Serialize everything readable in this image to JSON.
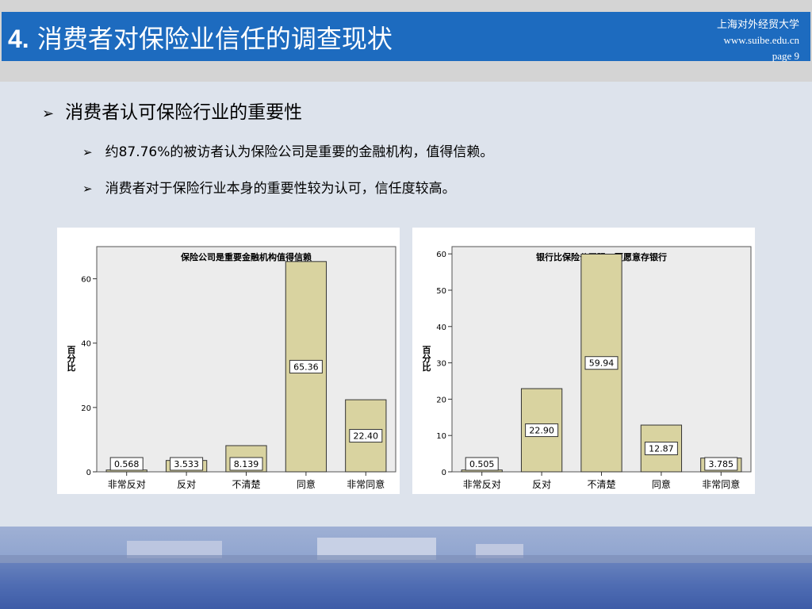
{
  "header": {
    "title_number": "4.",
    "title_text": "消费者对保险业信任的调查现状",
    "university": "上海对外经贸大学",
    "website": "www.suibe.edu.cn",
    "page": "page 9"
  },
  "content": {
    "main_point": "消费者认可保险行业的重要性",
    "sub_points": [
      "约87.76%的被访者认为保险公司是重要的金融机构，值得信赖。",
      "消费者对于保险行业本身的重要性较为认可，信任度较高。"
    ]
  },
  "colors": {
    "title_bar": "#1d6bbf",
    "bar_fill": "#d9d3a0",
    "plot_bg": "#ececec"
  },
  "chart_data": [
    {
      "type": "bar",
      "title": "保险公司是重要金融机构值得信赖",
      "ylabel": "百分比",
      "categories": [
        "非常反对",
        "反对",
        "不清楚",
        "同意",
        "非常同意"
      ],
      "values": [
        0.568,
        3.533,
        8.139,
        65.36,
        22.4
      ],
      "labels": [
        "0.568",
        "3.533",
        "8.139",
        "65.36",
        "22.40"
      ],
      "yticks": [
        0,
        20,
        40,
        60
      ],
      "ylim": [
        0,
        70
      ]
    },
    {
      "type": "bar",
      "title": "银行比保险公司强，更愿意存银行",
      "ylabel": "百分比",
      "categories": [
        "非常反对",
        "反对",
        "不清楚",
        "同意",
        "非常同意"
      ],
      "values": [
        0.505,
        22.9,
        59.94,
        12.87,
        3.785
      ],
      "labels": [
        "0.505",
        "22.90",
        "59.94",
        "12.87",
        "3.785"
      ],
      "yticks": [
        0,
        10,
        20,
        30,
        40,
        50,
        60
      ],
      "ylim": [
        0,
        62
      ]
    }
  ]
}
